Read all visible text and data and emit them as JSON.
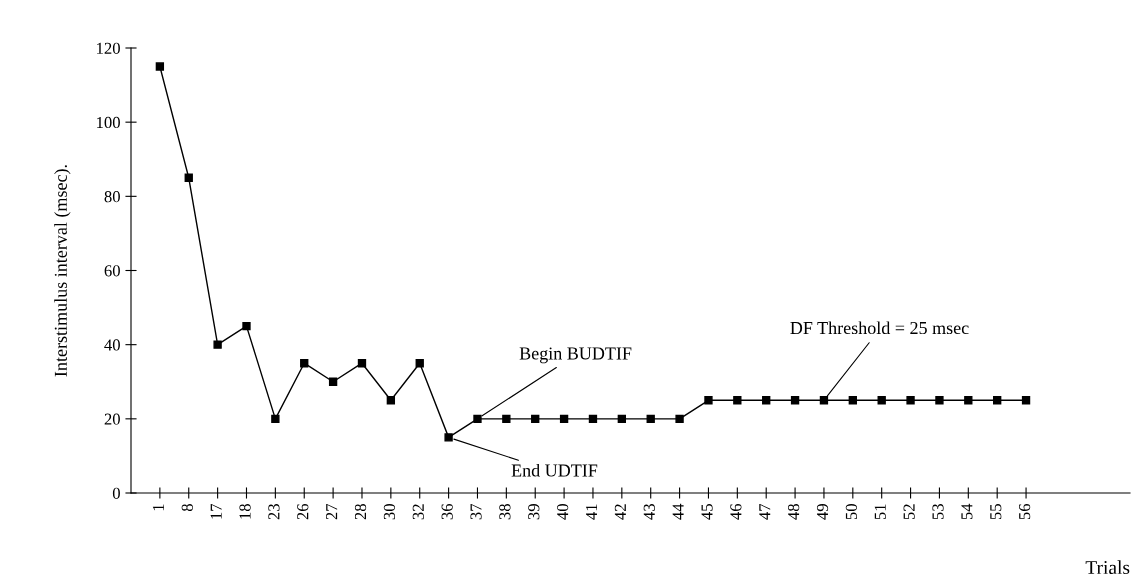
{
  "chart_data": {
    "type": "line",
    "ylabel": "Interstimulus interval (msec).",
    "xlabel": "Trials",
    "categories": [
      "1",
      "8",
      "17",
      "18",
      "23",
      "26",
      "27",
      "28",
      "30",
      "32",
      "36",
      "37",
      "38",
      "39",
      "40",
      "41",
      "42",
      "43",
      "44",
      "45",
      "46",
      "47",
      "48",
      "49",
      "50",
      "51",
      "52",
      "53",
      "54",
      "55",
      "56"
    ],
    "values": [
      115,
      85,
      40,
      45,
      20,
      35,
      30,
      35,
      25,
      35,
      15,
      20,
      20,
      20,
      20,
      20,
      20,
      20,
      20,
      25,
      25,
      25,
      25,
      25,
      25,
      25,
      25,
      25,
      25,
      25,
      25
    ],
    "color": "#000000",
    "marker": "square",
    "line_style": "solid",
    "grid": false,
    "legend": false,
    "ylim": [
      0,
      120
    ],
    "yticks": [
      0,
      20,
      40,
      60,
      80,
      100,
      120
    ],
    "annotations": [
      {
        "text": "Begin BUDTIF",
        "x": "37",
        "y": 20
      },
      {
        "text": "End UDTIF",
        "x": "36",
        "y": 15
      },
      {
        "text": "DF Threshold = 25 msec",
        "x": "49",
        "y": 25
      }
    ]
  }
}
